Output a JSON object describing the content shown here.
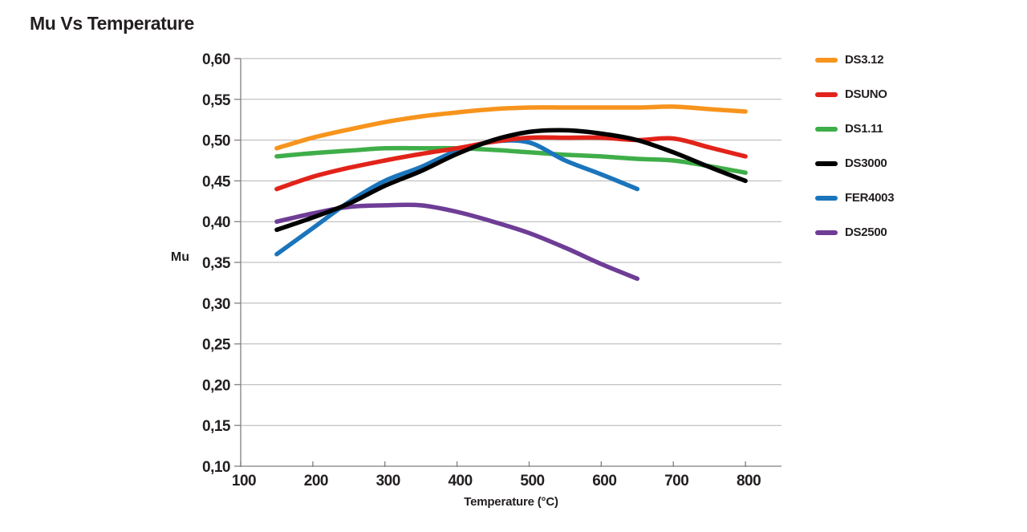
{
  "title": "Mu Vs Temperature",
  "colors": {
    "text": "#231F20",
    "grid": "#B3B3B3",
    "axis": "#7F7F7F",
    "background": "#FFFFFF"
  },
  "legend": [
    {
      "label": "DS3.12",
      "color": "#F7941D"
    },
    {
      "label": "DSUNO",
      "color": "#E2231A"
    },
    {
      "label": "DS1.11",
      "color": "#3FAE49"
    },
    {
      "label": "DS3000",
      "color": "#000000"
    },
    {
      "label": "FER4003",
      "color": "#1B75BC"
    },
    {
      "label": "DS2500",
      "color": "#6E3D96"
    }
  ],
  "chart_data": {
    "type": "line",
    "title": "Mu Vs Temperature",
    "xlabel": "Temperature (°C)",
    "ylabel": "Mu",
    "xlim": [
      100,
      850
    ],
    "ylim": [
      0.1,
      0.6
    ],
    "grid": true,
    "legend_position": "right",
    "xticks": [
      {
        "value": 100,
        "label": "100"
      },
      {
        "value": 200,
        "label": "200"
      },
      {
        "value": 300,
        "label": "300"
      },
      {
        "value": 400,
        "label": "400"
      },
      {
        "value": 500,
        "label": "500"
      },
      {
        "value": 600,
        "label": "600"
      },
      {
        "value": 700,
        "label": "700"
      },
      {
        "value": 800,
        "label": "800"
      }
    ],
    "yticks": [
      {
        "value": 0.6,
        "label": "0,60"
      },
      {
        "value": 0.55,
        "label": "0,55"
      },
      {
        "value": 0.5,
        "label": "0,50"
      },
      {
        "value": 0.45,
        "label": "0,45"
      },
      {
        "value": 0.4,
        "label": "0,40"
      },
      {
        "value": 0.35,
        "label": "0,35"
      },
      {
        "value": 0.3,
        "label": "0,30"
      },
      {
        "value": 0.25,
        "label": "0,25"
      },
      {
        "value": 0.2,
        "label": "0,20"
      },
      {
        "value": 0.15,
        "label": "0,15"
      },
      {
        "value": 0.1,
        "label": "0,10"
      }
    ],
    "series": [
      {
        "name": "DS3.12",
        "color": "#F7941D",
        "x": [
          150,
          200,
          250,
          300,
          350,
          400,
          450,
          500,
          550,
          600,
          650,
          700,
          750,
          800
        ],
        "values": [
          0.49,
          0.503,
          0.513,
          0.522,
          0.529,
          0.534,
          0.538,
          0.54,
          0.54,
          0.54,
          0.54,
          0.541,
          0.538,
          0.535
        ]
      },
      {
        "name": "DSUNO",
        "color": "#E2231A",
        "x": [
          150,
          200,
          250,
          300,
          350,
          400,
          450,
          500,
          550,
          600,
          650,
          700,
          750,
          800
        ],
        "values": [
          0.44,
          0.455,
          0.466,
          0.475,
          0.483,
          0.49,
          0.498,
          0.503,
          0.503,
          0.503,
          0.5,
          0.502,
          0.491,
          0.48
        ]
      },
      {
        "name": "DS1.11",
        "color": "#3FAE49",
        "x": [
          150,
          200,
          250,
          300,
          350,
          400,
          450,
          500,
          550,
          600,
          650,
          700,
          750,
          800
        ],
        "values": [
          0.48,
          0.484,
          0.487,
          0.49,
          0.49,
          0.49,
          0.488,
          0.485,
          0.482,
          0.48,
          0.477,
          0.475,
          0.468,
          0.46
        ]
      },
      {
        "name": "DS3000",
        "color": "#000000",
        "x": [
          150,
          200,
          250,
          300,
          350,
          400,
          450,
          500,
          550,
          600,
          650,
          700,
          750,
          800
        ],
        "values": [
          0.39,
          0.405,
          0.422,
          0.444,
          0.462,
          0.483,
          0.5,
          0.51,
          0.512,
          0.508,
          0.5,
          0.485,
          0.467,
          0.45
        ]
      },
      {
        "name": "FER4003",
        "color": "#1B75BC",
        "x": [
          150,
          200,
          250,
          300,
          350,
          400,
          450,
          500,
          550,
          600,
          650
        ],
        "values": [
          0.36,
          0.392,
          0.424,
          0.45,
          0.467,
          0.487,
          0.498,
          0.497,
          0.475,
          0.458,
          0.44
        ]
      },
      {
        "name": "DS2500",
        "color": "#6E3D96",
        "x": [
          150,
          200,
          250,
          300,
          350,
          400,
          450,
          500,
          550,
          600,
          650
        ],
        "values": [
          0.4,
          0.41,
          0.418,
          0.42,
          0.42,
          0.412,
          0.4,
          0.386,
          0.368,
          0.348,
          0.33
        ]
      }
    ],
    "draw_order": [
      "DS2500",
      "DS1.11",
      "FER4003",
      "DSUNO",
      "DS3000",
      "DS3.12"
    ]
  }
}
